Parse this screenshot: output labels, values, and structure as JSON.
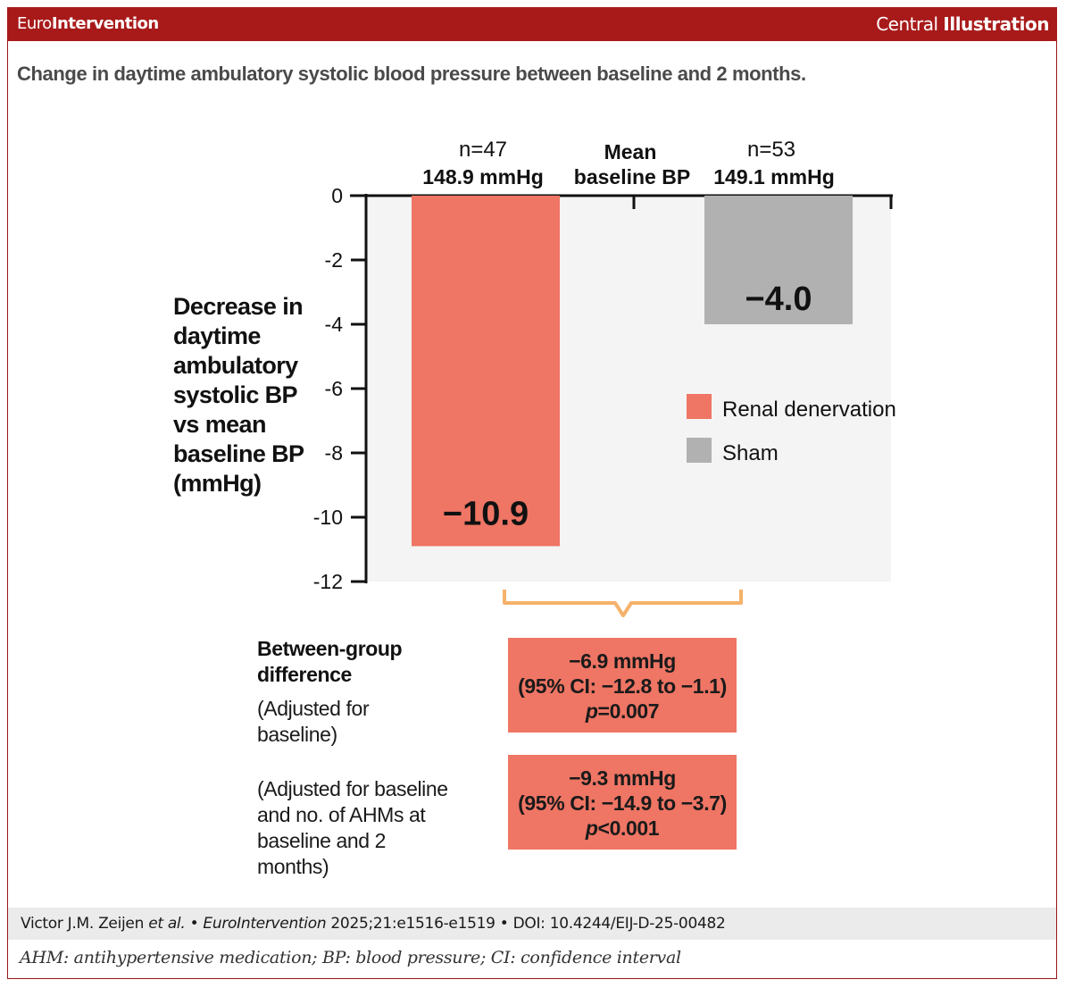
{
  "header": {
    "brand_prefix": "Euro",
    "brand_suffix": "Intervention",
    "section_prefix": "Central",
    "section_suffix": "Illustration"
  },
  "subtitle": "Change in daytime ambulatory systolic blood pressure between baseline and 2 months.",
  "chart_data": {
    "type": "bar",
    "ylabel": "Decrease in daytime ambulatory systolic BP vs mean baseline BP (mmHg)",
    "ylim": [
      -12,
      0
    ],
    "yticks": [
      "0",
      "-2",
      "-4",
      "-6",
      "-8",
      "-10",
      "-12"
    ],
    "ytick_values": [
      0,
      -2,
      -4,
      -6,
      -8,
      -10,
      -12
    ],
    "categories": [
      "Renal denervation",
      "Sham"
    ],
    "values": [
      -10.9,
      -4.0
    ],
    "value_labels": [
      "−10.9",
      "−4.0"
    ],
    "colors": [
      "#ef7564",
      "#b1b1b1"
    ],
    "plot_background": "#f4f4f4",
    "top_labels": {
      "renal_n": "n=47",
      "renal_bp": "148.9 mmHg",
      "mean_line1": "Mean",
      "mean_line2": "baseline BP",
      "sham_n": "n=53",
      "sham_bp": "149.1 mmHg"
    },
    "legend": {
      "placement": "right",
      "items": [
        {
          "label": "Renal denervation",
          "color": "#ef7564"
        },
        {
          "label": "Sham",
          "color": "#b1b1b1"
        }
      ]
    },
    "bracket_color": "#f5b26b"
  },
  "between_group": {
    "title": "Between-group difference",
    "note1": "(Adjusted for baseline)",
    "note2": "(Adjusted for baseline and no. of AHMs at baseline and 2 months)",
    "result1": {
      "diff": "−6.9 mmHg",
      "ci": "(95% CI: −12.8 to −1.1)",
      "p_label": "p",
      "p_value": "=0.007"
    },
    "result2": {
      "diff": "−9.3 mmHg",
      "ci": "(95% CI: −14.9 to −3.7)",
      "p_label": "p",
      "p_value": "<0.001"
    }
  },
  "citation": {
    "authors": "Victor J.M. Zeijen",
    "et_al": "et al.",
    "journal": "EuroIntervention",
    "ref": "2025;21:e1516-e1519",
    "doi": "DOI: 10.4244/EIJ-D-25-00482",
    "bullet": "•"
  },
  "abbreviations": "AHM: antihypertensive medication; BP: blood pressure; CI: confidence interval"
}
